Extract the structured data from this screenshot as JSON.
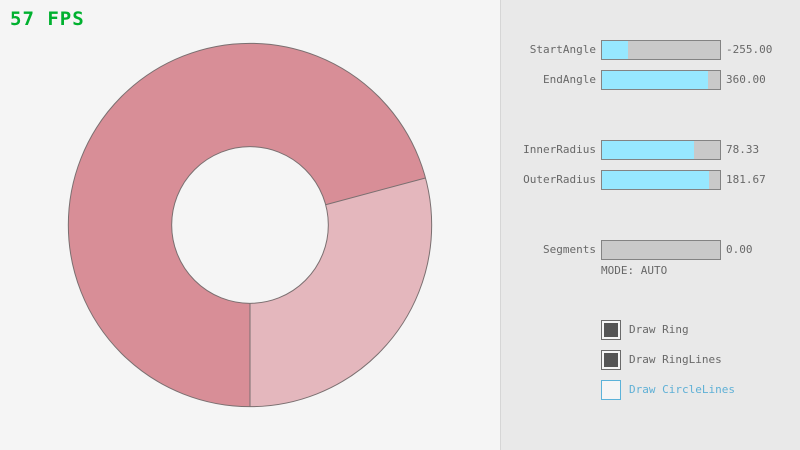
{
  "fps": {
    "text": "57 FPS",
    "color": "#00b12f"
  },
  "panel": {
    "sliders": [
      {
        "label": "StartAngle",
        "value": "-255.00",
        "fill_pct": 21.7
      },
      {
        "label": "EndAngle",
        "value": "360.00",
        "fill_pct": 90.0
      },
      {
        "label": "InnerRadius",
        "value": "78.33",
        "fill_pct": 78.3
      },
      {
        "label": "OuterRadius",
        "value": "181.67",
        "fill_pct": 90.8
      },
      {
        "label": "Segments",
        "value": "0.00",
        "fill_pct": 0
      }
    ],
    "mode_text": "MODE: AUTO",
    "checkboxes": [
      {
        "label": "Draw Ring",
        "checked": true
      },
      {
        "label": "Draw RingLines",
        "checked": true
      },
      {
        "label": "Draw CircleLines",
        "checked": false
      }
    ]
  },
  "ring": {
    "start_angle": -255.0,
    "end_angle": 360.0,
    "inner_radius": 78.33,
    "outer_radius": 181.67,
    "colors": {
      "dark": "#d88e97",
      "light": "#e4b7bd",
      "outline": "#7a6f70"
    }
  },
  "colors": {
    "accent_fill": "#97e8ff",
    "text": "#686868",
    "focused_text": "#5fb0d6",
    "panel_bg": "#e9e9e9",
    "canvas_bg": "#f5f5f5"
  }
}
